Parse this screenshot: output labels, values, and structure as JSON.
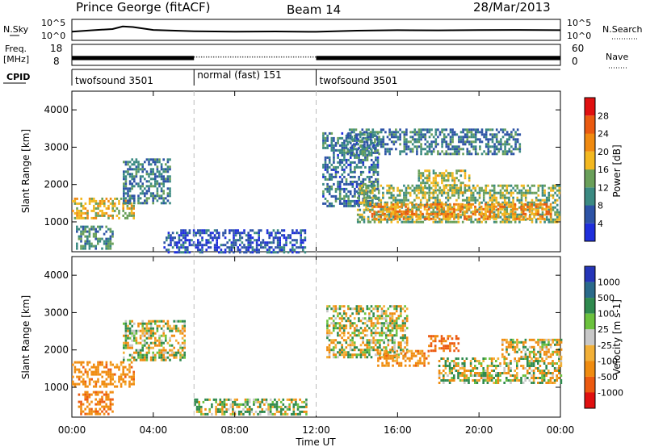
{
  "header": {
    "station": "Prince George (fitACF)",
    "beam": "Beam 14",
    "date": "28/Mar/2013"
  },
  "labels": {
    "nsky": "N.Sky",
    "nsearch": "N.Search",
    "freq_line1": "Freq.",
    "freq_line2": "[MHz]",
    "nave": "Nave",
    "cpid": "CPID"
  },
  "colors": {
    "noise": "#000000",
    "dashed_marker": "#bbbbbb",
    "power_scale": [
      "#1f2fdc",
      "#2d53a6",
      "#3b8a82",
      "#6aa05a",
      "#f3b820",
      "#f08a10",
      "#ea5a10",
      "#e01010"
    ],
    "velocity_scale": [
      "#2535b8",
      "#2a6a8a",
      "#2f8a4e",
      "#6cc23e",
      "#c8c8c8",
      "#f2b038",
      "#f08c10",
      "#ec5a10",
      "#e01010"
    ]
  },
  "chart_data": [
    {
      "type": "line",
      "title": "",
      "ylabel": "N.Sky",
      "y2label": "N.Search",
      "yscale": "log",
      "ylim": [
        1,
        100000
      ],
      "yticks_left": [
        "10^5",
        "10^0"
      ],
      "yticks_right": [
        "10^5",
        "10^0"
      ],
      "x_hours": [
        0,
        1,
        2,
        2.5,
        3,
        4,
        6,
        8,
        10,
        12,
        14,
        16,
        18,
        20,
        22,
        24
      ],
      "series": [
        {
          "values": [
            120,
            250,
            500,
            2000,
            1500,
            300,
            150,
            120,
            130,
            110,
            200,
            260,
            240,
            280,
            300,
            260
          ]
        }
      ]
    },
    {
      "type": "line",
      "title": "",
      "ylabel": "Freq. [MHz]",
      "y2label": "Nave",
      "ylim": [
        8,
        18
      ],
      "y2lim": [
        0,
        60
      ],
      "yticks_left": [
        "18",
        "8"
      ],
      "yticks_right": [
        "60",
        "0"
      ],
      "segments": [
        {
          "x_start": 0,
          "x_end": 6,
          "freq_range_mhz": [
            10.5,
            12.5
          ],
          "style": "solid"
        },
        {
          "x_start": 6,
          "x_end": 12,
          "freq_mhz": 12.0,
          "style": "dotted"
        },
        {
          "x_start": 12,
          "x_end": 24,
          "freq_range_mhz": [
            10.5,
            12.5
          ],
          "style": "solid"
        }
      ]
    },
    {
      "type": "table",
      "ylabel": "CPID",
      "segments": [
        {
          "x_start": 0,
          "x_end": 6,
          "label": "twofsound 3501"
        },
        {
          "x_start": 6,
          "x_end": 12,
          "label": "normal (fast) 151"
        },
        {
          "x_start": 12,
          "x_end": 24,
          "label": "twofsound 3501"
        }
      ]
    },
    {
      "type": "heatmap",
      "quantity": "Power",
      "ylabel": "Slant Range [km]",
      "xlabel": "",
      "xlim": [
        0,
        24
      ],
      "ylim": [
        200,
        4500
      ],
      "yticks": [
        1000,
        2000,
        3000,
        4000
      ],
      "colorbar": {
        "label": "Power [dB]",
        "ticks": [
          4,
          8,
          12,
          16,
          20,
          24,
          28
        ],
        "range": [
          0,
          32
        ]
      },
      "echo_regions": [
        {
          "x": [
            0.0,
            3.0
          ],
          "range_km": [
            1100,
            1650
          ],
          "value_db": 18
        },
        {
          "x": [
            0.2,
            2.0
          ],
          "range_km": [
            300,
            900
          ],
          "value_db": 10
        },
        {
          "x": [
            2.5,
            4.8
          ],
          "range_km": [
            1500,
            2700
          ],
          "value_db": 9
        },
        {
          "x": [
            4.5,
            11.5
          ],
          "range_km": [
            200,
            800
          ],
          "value_db": 5
        },
        {
          "x": [
            12.3,
            15.0
          ],
          "range_km": [
            1400,
            3400
          ],
          "value_db": 8
        },
        {
          "x": [
            14.0,
            24.0
          ],
          "range_km": [
            1000,
            2000
          ],
          "value_db": 14
        },
        {
          "x": [
            14.5,
            23.5
          ],
          "range_km": [
            1100,
            1500
          ],
          "value_db": 22
        },
        {
          "x": [
            17.0,
            19.5
          ],
          "range_km": [
            1800,
            2400
          ],
          "value_db": 16
        },
        {
          "x": [
            13.5,
            22.0
          ],
          "range_km": [
            2800,
            3500
          ],
          "value_db": 9
        }
      ]
    },
    {
      "type": "heatmap",
      "quantity": "Velocity",
      "ylabel": "Slant Range [km]",
      "xlabel": "Time UT",
      "xlim": [
        0,
        24
      ],
      "ylim": [
        200,
        4500
      ],
      "yticks": [
        1000,
        2000,
        3000,
        4000
      ],
      "xticks": [
        "00:00",
        "04:00",
        "08:00",
        "12:00",
        "16:00",
        "20:00",
        "00:00"
      ],
      "colorbar": {
        "label": "Velocity [m s-1]",
        "ticks": [
          1000,
          500,
          100,
          25,
          -25,
          -100,
          -500,
          -1000
        ]
      },
      "echo_regions": [
        {
          "x": [
            0.0,
            3.0
          ],
          "range_km": [
            1000,
            1700
          ],
          "value_ms": -300
        },
        {
          "x": [
            0.3,
            2.0
          ],
          "range_km": [
            300,
            900
          ],
          "value_ms": -400
        },
        {
          "x": [
            2.5,
            5.5
          ],
          "range_km": [
            1700,
            2800
          ],
          "value_ms": 0
        },
        {
          "x": [
            6.0,
            11.5
          ],
          "range_km": [
            300,
            700
          ],
          "value_ms": 60
        },
        {
          "x": [
            12.5,
            16.5
          ],
          "range_km": [
            1800,
            3200
          ],
          "value_ms": 0
        },
        {
          "x": [
            15.0,
            17.5
          ],
          "range_km": [
            1600,
            2000
          ],
          "value_ms": -300
        },
        {
          "x": [
            17.5,
            19.0
          ],
          "range_km": [
            2000,
            2400
          ],
          "value_ms": -600
        },
        {
          "x": [
            18.0,
            24.0
          ],
          "range_km": [
            1100,
            1800
          ],
          "value_ms": 0
        },
        {
          "x": [
            21.0,
            24.0
          ],
          "range_km": [
            1800,
            2300
          ],
          "value_ms": -80
        }
      ]
    }
  ],
  "markers": {
    "dashed_hours": [
      6,
      12
    ]
  }
}
